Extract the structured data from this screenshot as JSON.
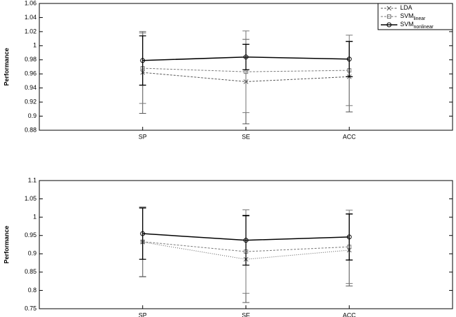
{
  "chart_data": [
    {
      "type": "line",
      "y_label": "Performance",
      "categories": [
        "SP",
        "SE",
        "ACC"
      ],
      "ylim": [
        0.88,
        1.06
      ],
      "yticks": [
        0.88,
        0.9,
        0.92,
        0.94,
        0.96,
        0.98,
        1,
        1.02,
        1.04,
        1.06
      ],
      "legend": "northeast",
      "series": [
        {
          "name": "LDA",
          "color": "#555555",
          "dash": "3,2",
          "marker": "x",
          "values": [
            0.962,
            0.949,
            0.956
          ],
          "errors": [
            0.058,
            0.06,
            0.05
          ]
        },
        {
          "name": "SVM",
          "name_sub": "linear",
          "color": "#777777",
          "dash": "3,2",
          "marker": "square",
          "values": [
            0.968,
            0.963,
            0.965
          ],
          "errors": [
            0.05,
            0.058,
            0.05
          ]
        },
        {
          "name": "SVM",
          "name_sub": "nonlinear",
          "color": "#000000",
          "dash": "none",
          "marker": "circle",
          "values": [
            0.979,
            0.984,
            0.981
          ],
          "errors": [
            0.035,
            0.018,
            0.025
          ]
        }
      ]
    },
    {
      "type": "line",
      "y_label": "Performance",
      "categories": [
        "SP",
        "SE",
        "ACC"
      ],
      "ylim": [
        0.75,
        1.1
      ],
      "yticks": [
        0.75,
        0.8,
        0.85,
        0.9,
        0.95,
        1,
        1.05,
        1.1
      ],
      "series": [
        {
          "name": "LDA",
          "color": "#555555",
          "dash": "1,2",
          "marker": "x",
          "values": [
            0.932,
            0.885,
            0.91
          ],
          "errors": [
            0.095,
            0.118,
            0.098
          ]
        },
        {
          "name": "SVM",
          "name_sub": "linear",
          "color": "#777777",
          "dash": "3,2",
          "marker": "square",
          "values": [
            0.933,
            0.906,
            0.919
          ],
          "errors": [
            0.095,
            0.114,
            0.1
          ]
        },
        {
          "name": "SVM",
          "name_sub": "nonlinear",
          "color": "#000000",
          "dash": "none",
          "marker": "circle",
          "values": [
            0.955,
            0.937,
            0.946
          ],
          "errors": [
            0.07,
            0.068,
            0.063
          ]
        }
      ]
    }
  ]
}
